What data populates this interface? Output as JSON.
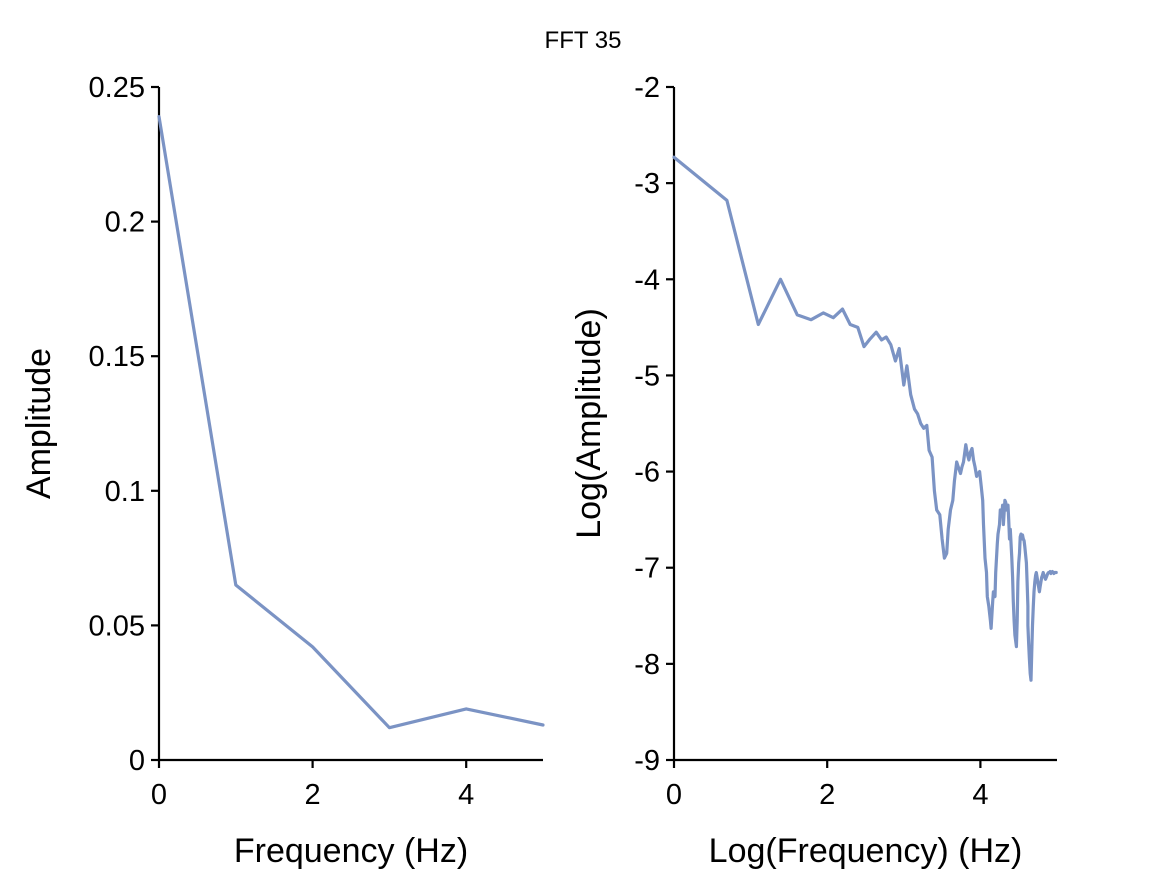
{
  "figure": {
    "title": "FFT 35",
    "line_color": "#7b93c4"
  },
  "chart_data": [
    {
      "type": "line",
      "xlabel": "Frequency (Hz)",
      "ylabel": "Amplitude",
      "xlim": [
        0,
        5
      ],
      "ylim": [
        0,
        0.25
      ],
      "xticks": [
        0,
        2,
        4
      ],
      "xtick_labels": [
        "0",
        "2",
        "4"
      ],
      "yticks": [
        0,
        0.05,
        0.1,
        0.15,
        0.2,
        0.25
      ],
      "ytick_labels": [
        "0",
        "0.05",
        "0.1",
        "0.15",
        "0.2",
        "0.25"
      ],
      "grid": false,
      "series": [
        {
          "x": [
            0,
            1,
            2,
            3,
            4,
            5
          ],
          "y": [
            0.239,
            0.065,
            0.042,
            0.012,
            0.019,
            0.013
          ]
        }
      ]
    },
    {
      "type": "line",
      "xlabel": "Log(Frequency) (Hz)",
      "ylabel": "Log(Amplitude)",
      "xlim": [
        0,
        5
      ],
      "ylim": [
        -9,
        -2
      ],
      "xticks": [
        0,
        2,
        4
      ],
      "xtick_labels": [
        "0",
        "2",
        "4"
      ],
      "yticks": [
        -9,
        -8,
        -7,
        -6,
        -5,
        -4,
        -3,
        -2
      ],
      "ytick_labels": [
        "-9",
        "-8",
        "-7",
        "-6",
        "-5",
        "-4",
        "-3",
        "-2"
      ],
      "grid": false,
      "series": [
        {
          "x": [
            0,
            0.69,
            1.1,
            1.39,
            1.61,
            1.79,
            1.95,
            2.08,
            2.2,
            2.3,
            2.4,
            2.48,
            2.56,
            2.64,
            2.71,
            2.77,
            2.83,
            2.89,
            2.94,
            3.0,
            3.04,
            3.09,
            3.14,
            3.18,
            3.22,
            3.26,
            3.3,
            3.33,
            3.37,
            3.4,
            3.43,
            3.47,
            3.5,
            3.53,
            3.56,
            3.58,
            3.61,
            3.64,
            3.66,
            3.69,
            3.71,
            3.74,
            3.76,
            3.78,
            3.81,
            3.83,
            3.85,
            3.87,
            3.89,
            3.91,
            3.93,
            3.95,
            3.97,
            3.99,
            4.01,
            4.03,
            4.04,
            4.06,
            4.08,
            4.09,
            4.11,
            4.13,
            4.14,
            4.16,
            4.17,
            4.19,
            4.2,
            4.22,
            4.23,
            4.25,
            4.26,
            4.28,
            4.29,
            4.3,
            4.32,
            4.33,
            4.34,
            4.36,
            4.37,
            4.38,
            4.39,
            4.41,
            4.42,
            4.43,
            4.44,
            4.45,
            4.47,
            4.48,
            4.49,
            4.5,
            4.51,
            4.52,
            4.53,
            4.54,
            4.55,
            4.56,
            4.57,
            4.58,
            4.6,
            4.61,
            4.62,
            4.62,
            4.63,
            4.64,
            4.65,
            4.66,
            4.67,
            4.68,
            4.69,
            4.7,
            4.71,
            4.72,
            4.73,
            4.74,
            4.75,
            4.76,
            4.77,
            4.78,
            4.79,
            4.8,
            4.81,
            4.82,
            4.83,
            4.84,
            4.85,
            4.86,
            4.87,
            4.88,
            4.89,
            4.9,
            4.91,
            4.91,
            4.92,
            4.93,
            4.94,
            4.95,
            4.96,
            4.97,
            4.98,
            4.99
          ],
          "y": [
            -2.73,
            -3.18,
            -4.47,
            -4.0,
            -4.37,
            -4.42,
            -4.35,
            -4.4,
            -4.31,
            -4.47,
            -4.5,
            -4.7,
            -4.62,
            -4.55,
            -4.63,
            -4.6,
            -4.68,
            -4.85,
            -4.72,
            -5.1,
            -4.9,
            -5.2,
            -5.35,
            -5.4,
            -5.5,
            -5.55,
            -5.52,
            -5.78,
            -5.85,
            -6.2,
            -6.4,
            -6.45,
            -6.7,
            -6.9,
            -6.85,
            -6.6,
            -6.4,
            -6.3,
            -6.1,
            -5.9,
            -5.95,
            -6.02,
            -5.95,
            -5.9,
            -5.72,
            -5.82,
            -5.88,
            -5.8,
            -5.76,
            -5.88,
            -5.95,
            -6.05,
            -6.02,
            -6.0,
            -6.15,
            -6.3,
            -6.55,
            -6.9,
            -7.05,
            -7.3,
            -7.4,
            -7.55,
            -7.63,
            -7.35,
            -7.25,
            -7.3,
            -7.05,
            -6.75,
            -6.65,
            -6.55,
            -6.4,
            -6.45,
            -6.35,
            -6.55,
            -6.3,
            -6.32,
            -6.4,
            -6.35,
            -6.5,
            -6.7,
            -6.6,
            -6.9,
            -7.1,
            -7.35,
            -7.55,
            -7.7,
            -7.82,
            -7.55,
            -7.15,
            -6.95,
            -6.85,
            -6.68,
            -6.65,
            -6.7,
            -6.66,
            -6.7,
            -6.72,
            -6.78,
            -6.95,
            -7.15,
            -7.4,
            -7.6,
            -7.8,
            -7.95,
            -8.1,
            -8.17,
            -7.9,
            -7.6,
            -7.4,
            -7.25,
            -7.15,
            -7.08,
            -7.05,
            -7.1,
            -7.15,
            -7.2,
            -7.25,
            -7.2,
            -7.15,
            -7.1,
            -7.08,
            -7.05,
            -7.08,
            -7.1,
            -7.12,
            -7.1,
            -7.08,
            -7.06,
            -7.05,
            -7.05,
            -7.04,
            -7.05,
            -7.06,
            -7.05,
            -7.04,
            -7.05,
            -7.06,
            -7.05,
            -7.05,
            -7.05
          ]
        }
      ]
    }
  ]
}
